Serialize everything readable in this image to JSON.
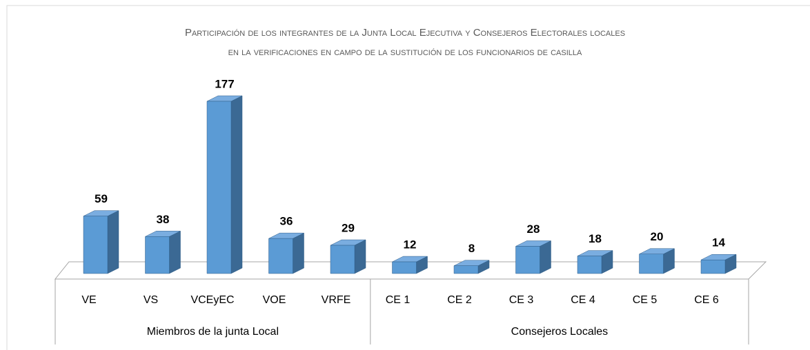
{
  "chart_data": {
    "type": "bar3d",
    "title": [
      "Participación de los integrantes de la Junta Local Ejecutiva y Consejeros Electorales locales",
      "en la verificaciones en campo de la sustitución de los funcionarios de casilla"
    ],
    "categories": [
      "VE",
      "VS",
      "VCEyEC",
      "VOE",
      "VRFE",
      "CE 1",
      "CE 2",
      "CE 3",
      "CE 4",
      "CE 5",
      "CE 6"
    ],
    "values": [
      59,
      38,
      177,
      36,
      29,
      12,
      8,
      28,
      18,
      20,
      14
    ],
    "groups": [
      {
        "name": "Miembros de la junta Local",
        "count": 5
      },
      {
        "name": "Consejeros Locales",
        "count": 6
      }
    ],
    "color": "#5b9bd5"
  }
}
